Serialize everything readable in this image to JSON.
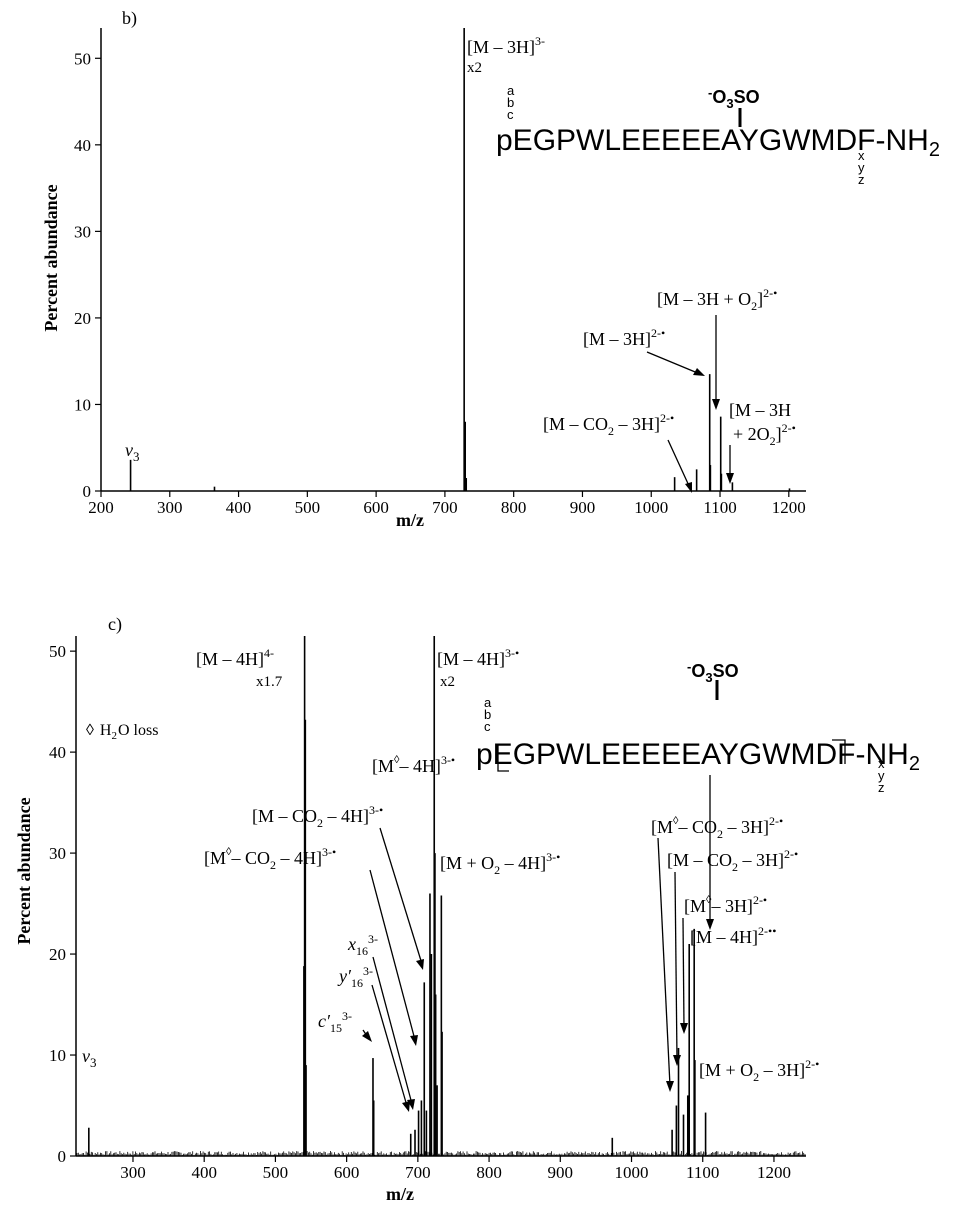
{
  "panels": [
    {
      "id": "b",
      "panel_label": "b)",
      "ylabel": "Percent abundance",
      "xlabel": "m/z",
      "xlim": [
        200,
        1225
      ],
      "ylim": [
        0,
        53.5
      ],
      "xticks": [
        200,
        300,
        400,
        500,
        600,
        700,
        800,
        900,
        1000,
        1100,
        1200
      ],
      "yticks": [
        0,
        10,
        20,
        30,
        40,
        50
      ],
      "sequence": {
        "text": "pEGPWLEEEEEAYGWMDF-NH",
        "subscript": "2",
        "left_ions": [
          "a",
          "b",
          "c"
        ],
        "right_ions": [
          "x",
          "y",
          "z"
        ],
        "modification": "O3SO",
        "modification_charge": "-"
      },
      "annotations": [
        {
          "main": "[M – 3H]",
          "sup": "3-",
          "sub": "x2"
        },
        {
          "main": "[M – 3H + O",
          "sub": "2",
          "tail": "]",
          "sup": "2-•"
        },
        {
          "main": "[M – 3H]",
          "sup": "2-•"
        },
        {
          "main": "[M – CO",
          "sub": "2",
          "tail": " – 3H]",
          "sup": "2-•"
        },
        {
          "line1": "[M – 3H",
          "line2": "+ 2O",
          "sub": "2",
          "tail": "]",
          "sup": "2-•"
        },
        {
          "main": "v",
          "sub": "3"
        }
      ]
    },
    {
      "id": "c",
      "panel_label": "c)",
      "ylabel": "Percent abundance",
      "xlabel": "m/z",
      "xlim": [
        220,
        1245
      ],
      "ylim": [
        0,
        51.5
      ],
      "xticks": [
        300,
        400,
        500,
        600,
        700,
        800,
        900,
        1000,
        1100,
        1200
      ],
      "yticks": [
        0,
        10,
        20,
        30,
        40,
        50
      ],
      "legend": {
        "symbol": "◊",
        "text": "H",
        "sub": "2",
        "tail": "O loss"
      },
      "sequence": {
        "text": "pEGPWLEEEEEAYGWMDF-NH",
        "subscript": "2",
        "left_ions": [
          "a",
          "b",
          "c"
        ],
        "right_ions": [
          "x",
          "y",
          "z"
        ],
        "modification": "O3SO",
        "modification_charge": "-"
      },
      "annotations": [
        {
          "main": "[M – 4H]",
          "sup": "4-",
          "sub": "x1.7"
        },
        {
          "main": "[M – 4H]",
          "sup": "3-•",
          "sub": "x2"
        },
        {
          "main": "[M",
          "diamond": "◊",
          "tail": "– 4H]",
          "sup": "3-•"
        },
        {
          "main": "[M – CO",
          "sub": "2",
          "tail": " – 4H]",
          "sup": "3-•"
        },
        {
          "main": "[M",
          "diamond": "◊",
          "tail": "– CO",
          "sub": "2",
          "tail2": " – 4H]",
          "sup": "3-•"
        },
        {
          "main": "[M + O",
          "sub": "2",
          "tail": " – 4H]",
          "sup": "3-•"
        },
        {
          "main": "x",
          "sub": "16",
          "sup": "3-"
        },
        {
          "main": "y′",
          "sub": "16",
          "sup": "3-"
        },
        {
          "main": "c′",
          "sub": "15",
          "sup": "3-"
        },
        {
          "main": "[M",
          "diamond": "◊",
          "tail": "– CO",
          "sub": "2",
          "tail2": " – 3H]",
          "sup": "2-•"
        },
        {
          "main": "[M – CO",
          "sub": "2",
          "tail": " – 3H]",
          "sup": "2-•"
        },
        {
          "main": "[M",
          "diamond": "◊",
          "tail": "– 3H]",
          "sup": "2-•"
        },
        {
          "main": "[M – 4H]",
          "sup": "2-••"
        },
        {
          "main": "[M + O",
          "sub": "2",
          "tail": " – 3H]",
          "sup": "2-•"
        },
        {
          "main": "v",
          "sub": "3"
        }
      ]
    }
  ],
  "chart_data": [
    {
      "type": "bar",
      "title": "",
      "xlabel": "m/z",
      "ylabel": "Percent abundance",
      "xlim": [
        200,
        1225
      ],
      "ylim": [
        0,
        53.5
      ],
      "peaks": [
        {
          "x": 243,
          "y": 3.6
        },
        {
          "x": 365,
          "y": 0.5
        },
        {
          "x": 728,
          "y": 53.5
        },
        {
          "x": 729.5,
          "y": 8
        },
        {
          "x": 731,
          "y": 1.5
        },
        {
          "x": 1034,
          "y": 1.6
        },
        {
          "x": 1066,
          "y": 2.5
        },
        {
          "x": 1085,
          "y": 13.5
        },
        {
          "x": 1086,
          "y": 3
        },
        {
          "x": 1101,
          "y": 8.6
        },
        {
          "x": 1102,
          "y": 2
        },
        {
          "x": 1118,
          "y": 1.0
        },
        {
          "x": 1201,
          "y": 0.3
        }
      ]
    },
    {
      "type": "bar",
      "title": "",
      "xlabel": "m/z",
      "ylabel": "Percent abundance",
      "xlim": [
        220,
        1245
      ],
      "ylim": [
        0,
        51.5
      ],
      "peaks": [
        {
          "x": 238,
          "y": 2.8
        },
        {
          "x": 541,
          "y": 51.5
        },
        {
          "x": 542,
          "y": 43.2
        },
        {
          "x": 540,
          "y": 18.8
        },
        {
          "x": 543,
          "y": 9
        },
        {
          "x": 637,
          "y": 9.7
        },
        {
          "x": 638,
          "y": 5.5
        },
        {
          "x": 690,
          "y": 2.2
        },
        {
          "x": 696,
          "y": 2.6
        },
        {
          "x": 701,
          "y": 4.5
        },
        {
          "x": 705,
          "y": 5.5
        },
        {
          "x": 709,
          "y": 17.2
        },
        {
          "x": 712,
          "y": 4.5
        },
        {
          "x": 717,
          "y": 26
        },
        {
          "x": 719,
          "y": 20
        },
        {
          "x": 723,
          "y": 51.5
        },
        {
          "x": 724,
          "y": 30
        },
        {
          "x": 725,
          "y": 16
        },
        {
          "x": 727,
          "y": 7
        },
        {
          "x": 733,
          "y": 25.8
        },
        {
          "x": 734,
          "y": 12.3
        },
        {
          "x": 973,
          "y": 1.8
        },
        {
          "x": 1057,
          "y": 2.6
        },
        {
          "x": 1063,
          "y": 5
        },
        {
          "x": 1066,
          "y": 10.7
        },
        {
          "x": 1073,
          "y": 4.1
        },
        {
          "x": 1079,
          "y": 6
        },
        {
          "x": 1081,
          "y": 21
        },
        {
          "x": 1088,
          "y": 22.5
        },
        {
          "x": 1089,
          "y": 9.5
        },
        {
          "x": 1104,
          "y": 4.3
        }
      ]
    }
  ]
}
